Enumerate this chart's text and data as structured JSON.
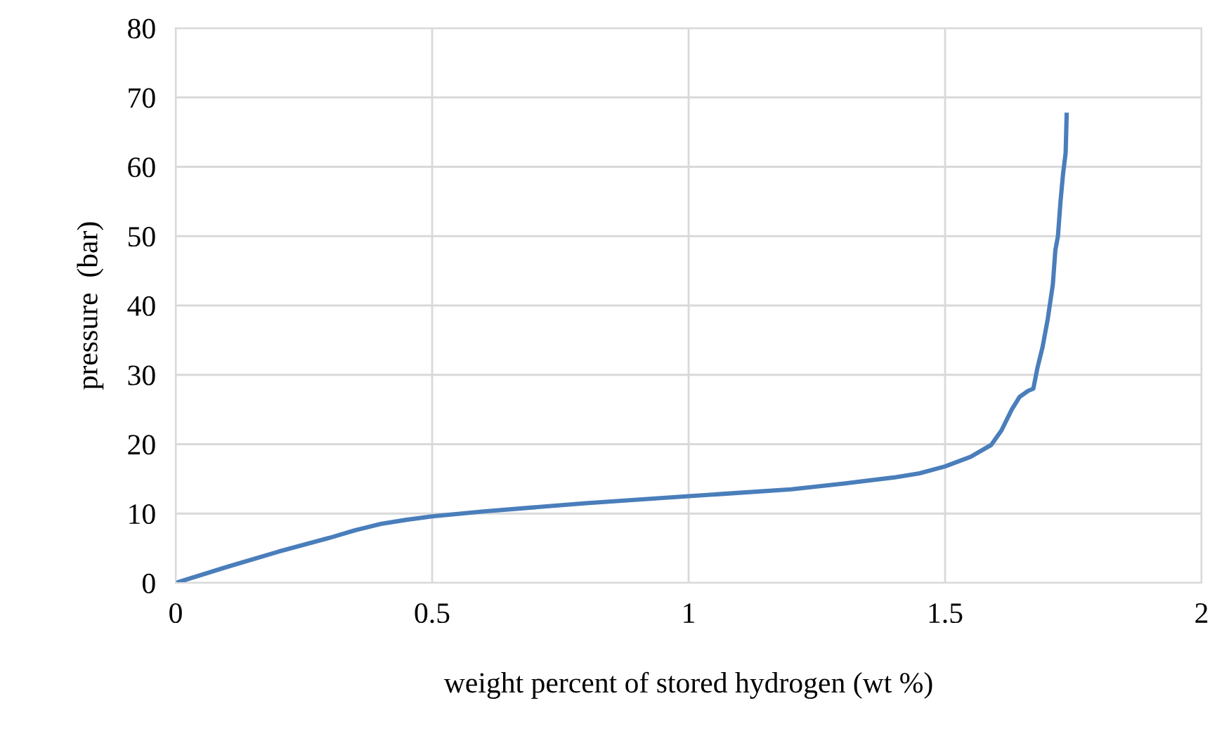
{
  "chart_data": {
    "type": "line",
    "xlabel": "weight percent of stored hydrogen (wt %)",
    "ylabel": "pressure  (bar)",
    "x": [
      0,
      0.1,
      0.2,
      0.3,
      0.35,
      0.4,
      0.45,
      0.5,
      0.6,
      0.7,
      0.8,
      0.9,
      1.0,
      1.1,
      1.2,
      1.3,
      1.4,
      1.45,
      1.5,
      1.55,
      1.59,
      1.61,
      1.63,
      1.645,
      1.662,
      1.672,
      1.68,
      1.69,
      1.7,
      1.71,
      1.715,
      1.72,
      1.725,
      1.73,
      1.735,
      1.737
    ],
    "series": [
      {
        "color": "#4a7ebb",
        "values": [
          0,
          2.3,
          4.5,
          6.5,
          7.6,
          8.5,
          9.1,
          9.6,
          10.3,
          10.9,
          11.5,
          12.0,
          12.5,
          13.0,
          13.5,
          14.3,
          15.2,
          15.8,
          16.8,
          18.2,
          19.9,
          22,
          25,
          26.8,
          27.7,
          28,
          31,
          34,
          38,
          43,
          48,
          50,
          55,
          59,
          62,
          67.5
        ]
      }
    ],
    "xlim": [
      0,
      2
    ],
    "xticks": [
      0,
      0.5,
      1,
      1.5,
      2
    ],
    "ylim": [
      0,
      80
    ],
    "yticks": [
      0,
      10,
      20,
      30,
      40,
      50,
      60,
      70,
      80
    ],
    "grid": true,
    "marker": "none",
    "line_style": "solid",
    "legend": false
  }
}
